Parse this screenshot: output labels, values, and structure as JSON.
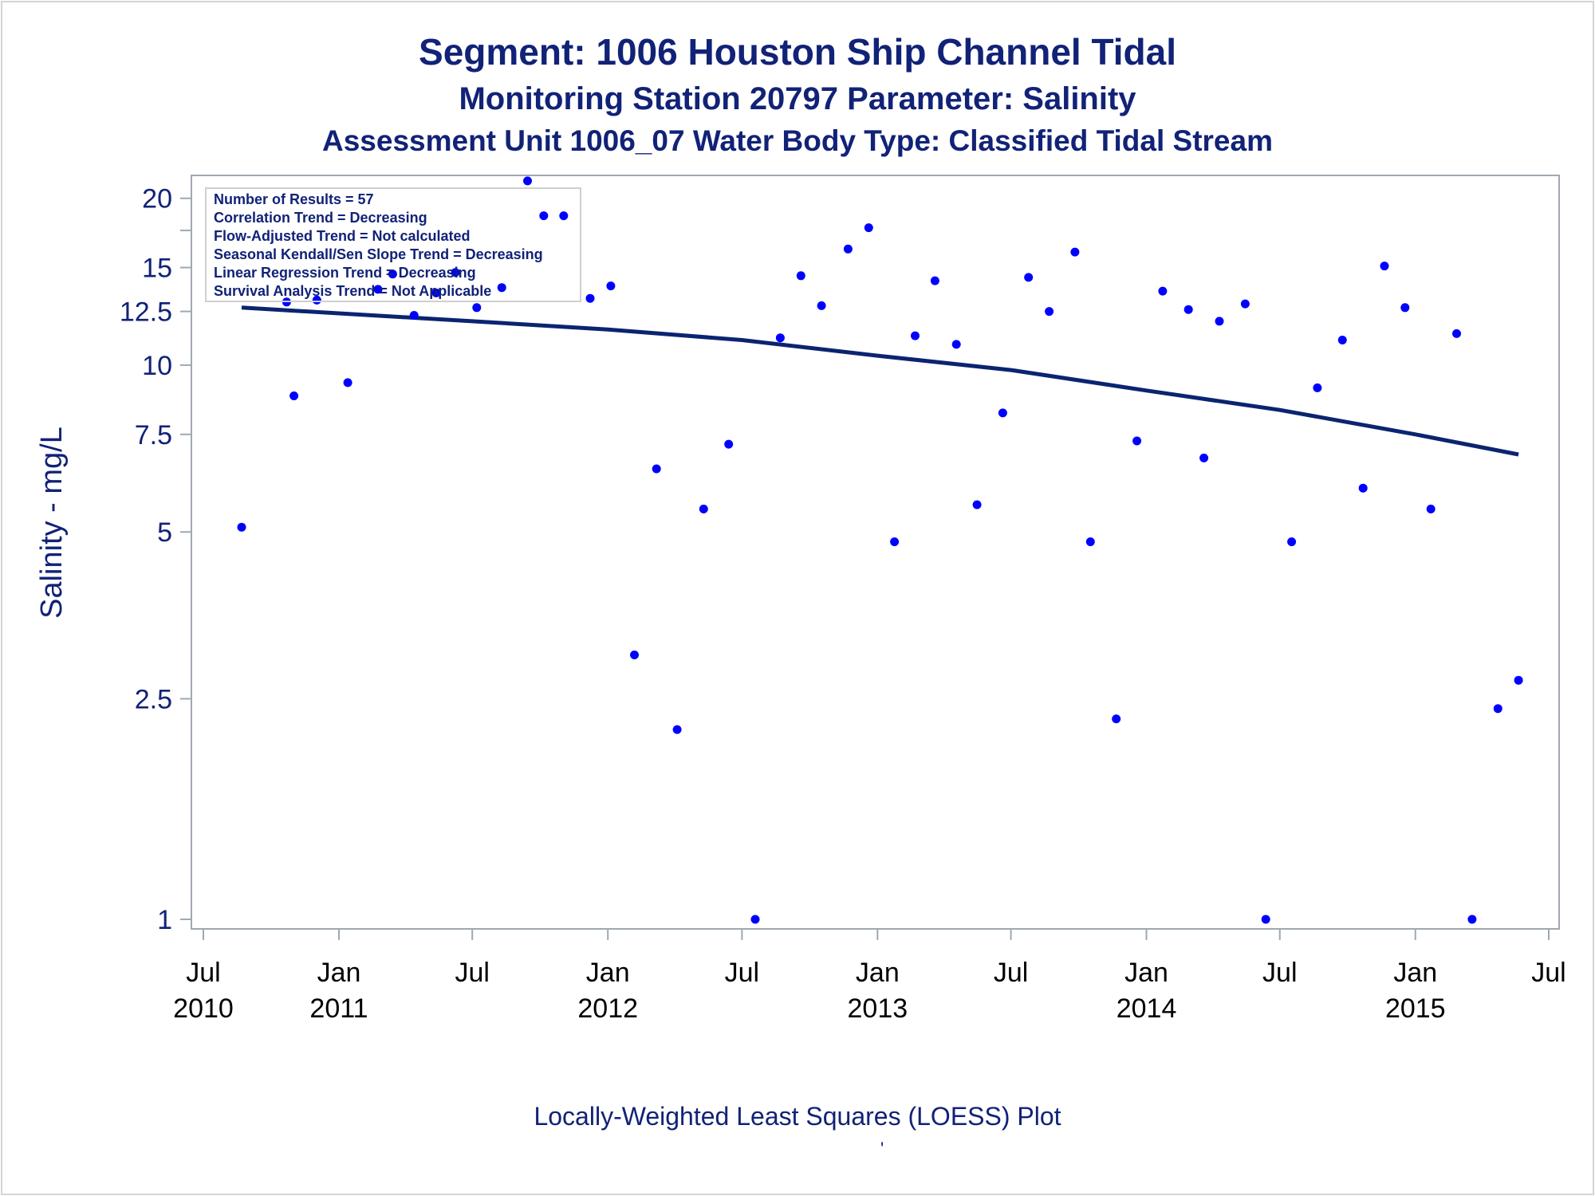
{
  "titles": {
    "line1": "Segment: 1006  Houston Ship Channel Tidal",
    "line2": "Monitoring Station 20797 Parameter: Salinity",
    "line3": "Assessment Unit 1006_07   Water Body Type: Classified Tidal Stream"
  },
  "footnote": "Locally-Weighted Least Squares (LOESS) Plot",
  "footnote_mark": "'",
  "colors": {
    "title": "#112277",
    "points": "#0000ff",
    "loess_line": "#0a2470",
    "axes": "#a0a8b0"
  },
  "chart_data": {
    "type": "scatter",
    "ylabel": "Salinity - mg/L",
    "y_scale": "log",
    "ylim": [
      1,
      21
    ],
    "xlim": [
      "2010-07-01",
      "2015-07-01"
    ],
    "y_ticks": [
      {
        "value": 1,
        "label": "1"
      },
      {
        "value": 2.5,
        "label": "2.5"
      },
      {
        "value": 5,
        "label": "5"
      },
      {
        "value": 7.5,
        "label": "7.5"
      },
      {
        "value": 10,
        "label": "10"
      },
      {
        "value": 12.5,
        "label": "12.5"
      },
      {
        "value": 15,
        "label": "15"
      },
      {
        "value": 17.5,
        "label": ""
      },
      {
        "value": 20,
        "label": "20"
      }
    ],
    "x_ticks": [
      {
        "date": "2010-07-01",
        "month": "Jul",
        "year": "2010"
      },
      {
        "date": "2011-01-01",
        "month": "Jan",
        "year": "2011"
      },
      {
        "date": "2011-07-01",
        "month": "Jul",
        "year": ""
      },
      {
        "date": "2012-01-01",
        "month": "Jan",
        "year": "2012"
      },
      {
        "date": "2012-07-01",
        "month": "Jul",
        "year": ""
      },
      {
        "date": "2013-01-01",
        "month": "Jan",
        "year": "2013"
      },
      {
        "date": "2013-07-01",
        "month": "Jul",
        "year": ""
      },
      {
        "date": "2014-01-01",
        "month": "Jan",
        "year": "2014"
      },
      {
        "date": "2014-07-01",
        "month": "Jul",
        "year": ""
      },
      {
        "date": "2015-01-01",
        "month": "Jan",
        "year": "2015"
      },
      {
        "date": "2015-07-01",
        "month": "Jul",
        "year": ""
      }
    ],
    "stats": [
      "Number of Results = 57",
      "Correlation Trend = Decreasing",
      "Flow-Adjusted Trend = Not calculated",
      "Seasonal Kendall/Sen Slope Trend = Decreasing",
      "Linear Regression Trend = Decreasing",
      "Survival Analysis Trend = Not Applicable"
    ],
    "stats_box_position": "top-left",
    "series": [
      {
        "kind": "points",
        "points": [
          {
            "x": "2010-08-22",
            "y": 5.1
          },
          {
            "x": "2010-10-22",
            "y": 13.0
          },
          {
            "x": "2010-11-01",
            "y": 8.8
          },
          {
            "x": "2010-12-02",
            "y": 13.1
          },
          {
            "x": "2011-01-13",
            "y": 9.3
          },
          {
            "x": "2011-02-23",
            "y": 13.7
          },
          {
            "x": "2011-03-15",
            "y": 14.6
          },
          {
            "x": "2011-04-13",
            "y": 12.3
          },
          {
            "x": "2011-05-13",
            "y": 13.5
          },
          {
            "x": "2011-06-08",
            "y": 14.7
          },
          {
            "x": "2011-07-07",
            "y": 12.7
          },
          {
            "x": "2011-08-10",
            "y": 13.8
          },
          {
            "x": "2011-09-14",
            "y": 21.5
          },
          {
            "x": "2011-10-06",
            "y": 18.6
          },
          {
            "x": "2011-11-02",
            "y": 18.6
          },
          {
            "x": "2011-12-08",
            "y": 13.2
          },
          {
            "x": "2012-01-05",
            "y": 13.9
          },
          {
            "x": "2012-02-06",
            "y": 3.0
          },
          {
            "x": "2012-03-07",
            "y": 6.5
          },
          {
            "x": "2012-04-04",
            "y": 2.2
          },
          {
            "x": "2012-05-10",
            "y": 5.5
          },
          {
            "x": "2012-06-13",
            "y": 7.2
          },
          {
            "x": "2012-07-19",
            "y": 1.0
          },
          {
            "x": "2012-08-22",
            "y": 11.2
          },
          {
            "x": "2012-09-19",
            "y": 14.5
          },
          {
            "x": "2012-10-17",
            "y": 12.8
          },
          {
            "x": "2012-11-22",
            "y": 16.2
          },
          {
            "x": "2012-12-20",
            "y": 17.7
          },
          {
            "x": "2013-01-24",
            "y": 4.8
          },
          {
            "x": "2013-02-21",
            "y": 11.3
          },
          {
            "x": "2013-03-20",
            "y": 14.2
          },
          {
            "x": "2013-04-18",
            "y": 10.9
          },
          {
            "x": "2013-05-16",
            "y": 5.6
          },
          {
            "x": "2013-06-20",
            "y": 8.2
          },
          {
            "x": "2013-07-25",
            "y": 14.4
          },
          {
            "x": "2013-08-22",
            "y": 12.5
          },
          {
            "x": "2013-09-26",
            "y": 16.0
          },
          {
            "x": "2013-10-17",
            "y": 4.8
          },
          {
            "x": "2013-11-21",
            "y": 2.3
          },
          {
            "x": "2013-12-19",
            "y": 7.3
          },
          {
            "x": "2014-01-23",
            "y": 13.6
          },
          {
            "x": "2014-02-27",
            "y": 12.6
          },
          {
            "x": "2014-03-20",
            "y": 6.8
          },
          {
            "x": "2014-04-10",
            "y": 12.0
          },
          {
            "x": "2014-05-15",
            "y": 12.9
          },
          {
            "x": "2014-06-12",
            "y": 1.0
          },
          {
            "x": "2014-07-17",
            "y": 4.8
          },
          {
            "x": "2014-08-21",
            "y": 9.1
          },
          {
            "x": "2014-09-24",
            "y": 11.1
          },
          {
            "x": "2014-10-22",
            "y": 6.0
          },
          {
            "x": "2014-11-20",
            "y": 15.1
          },
          {
            "x": "2014-12-18",
            "y": 12.7
          },
          {
            "x": "2015-01-22",
            "y": 5.5
          },
          {
            "x": "2015-02-26",
            "y": 11.4
          },
          {
            "x": "2015-03-19",
            "y": 1.0
          },
          {
            "x": "2015-04-23",
            "y": 2.4
          },
          {
            "x": "2015-05-21",
            "y": 2.7
          }
        ]
      },
      {
        "kind": "loess",
        "points": [
          {
            "x": "2010-08-22",
            "y": 12.7
          },
          {
            "x": "2011-01-01",
            "y": 12.4
          },
          {
            "x": "2011-07-01",
            "y": 12.0
          },
          {
            "x": "2012-01-01",
            "y": 11.6
          },
          {
            "x": "2012-07-01",
            "y": 11.1
          },
          {
            "x": "2013-01-01",
            "y": 10.4
          },
          {
            "x": "2013-07-01",
            "y": 9.8
          },
          {
            "x": "2014-01-01",
            "y": 9.0
          },
          {
            "x": "2014-07-01",
            "y": 8.3
          },
          {
            "x": "2015-01-01",
            "y": 7.5
          },
          {
            "x": "2015-05-21",
            "y": 6.9
          }
        ]
      }
    ]
  }
}
